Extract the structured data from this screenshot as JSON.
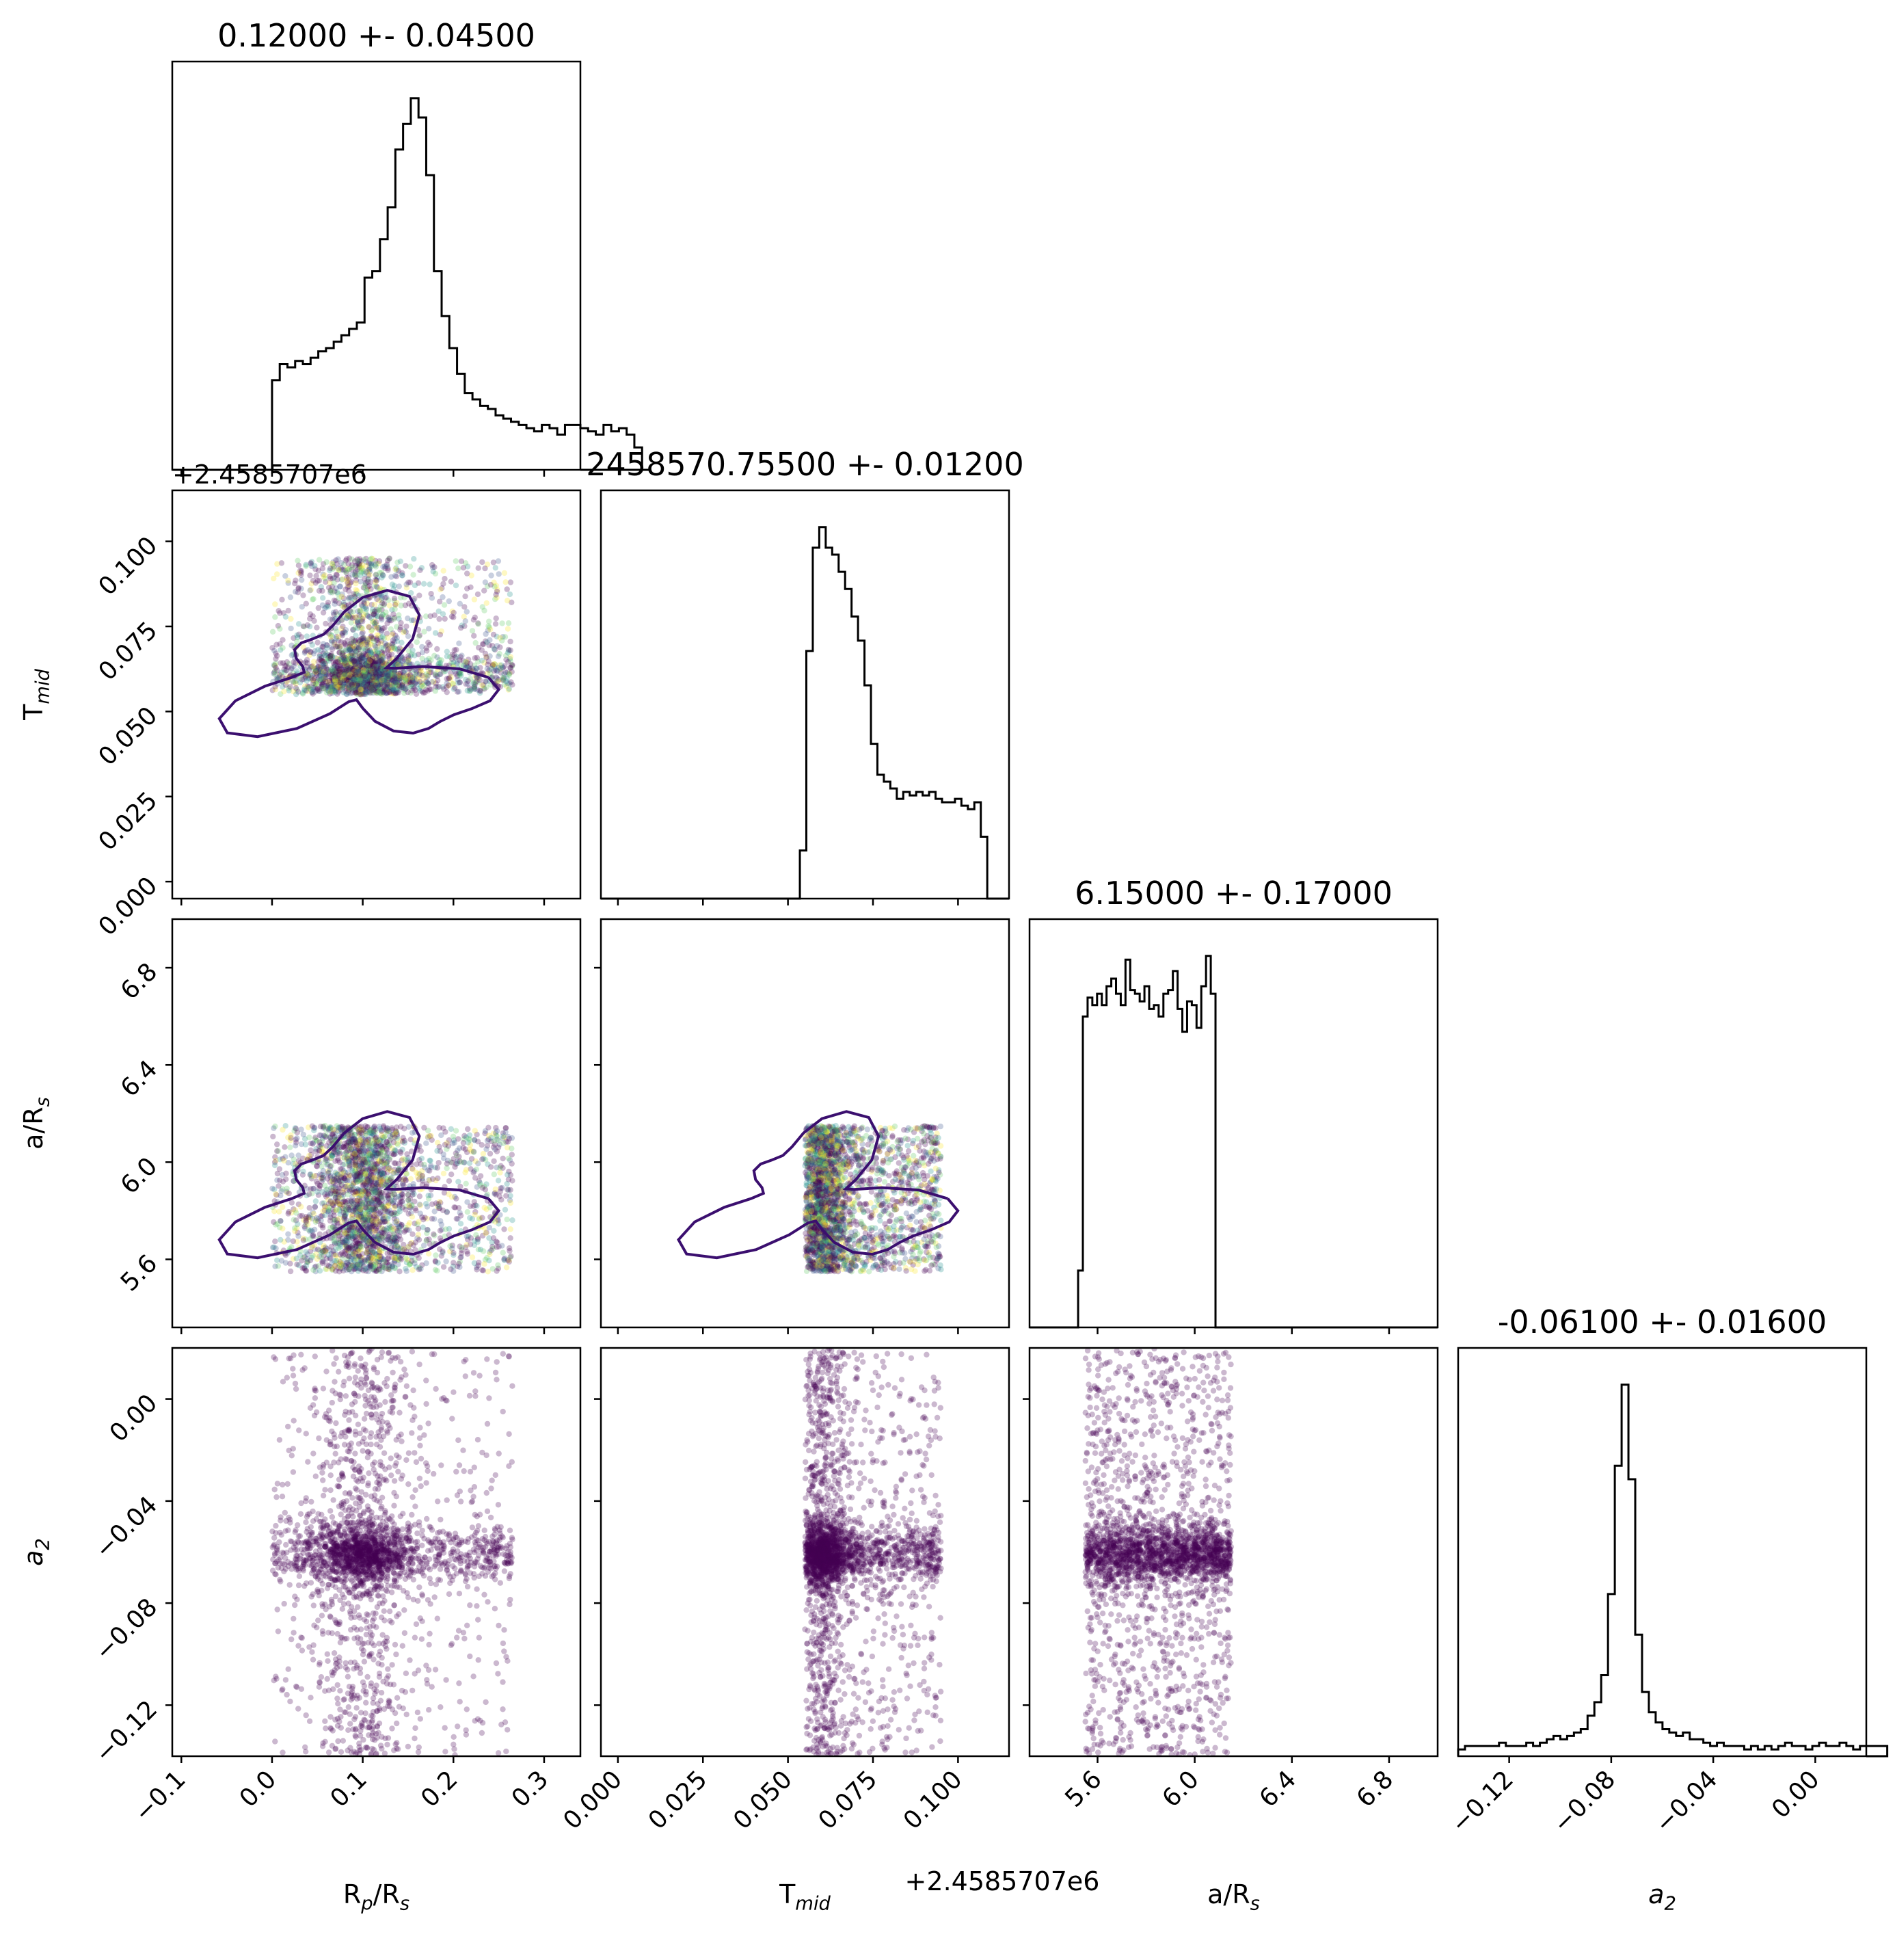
{
  "chart_data": {
    "type": "corner",
    "figure": "corner plot of posterior samples",
    "corner_offset_label": "+2.4585707e6",
    "parameters": [
      {
        "key": "rp",
        "label": "R",
        "label_sub": "p",
        "label_tail": "/R",
        "label_tail_sub": "s",
        "range": [
          -0.11,
          0.34
        ],
        "ticks": [
          -0.1,
          0.0,
          0.1,
          0.2,
          0.3
        ],
        "tick_labels": [
          "−0.1",
          "0.0",
          "0.1",
          "0.2",
          "0.3"
        ],
        "title": "0.12000 +- 0.04500"
      },
      {
        "key": "tmid",
        "label": "T",
        "label_sub": "mid",
        "label_tail": "",
        "label_tail_sub": "",
        "offset_label": "+2.4585707e6",
        "range": [
          -0.005,
          0.115
        ],
        "ticks": [
          0.0,
          0.025,
          0.05,
          0.075,
          0.1
        ],
        "tick_labels": [
          "0.000",
          "0.025",
          "0.050",
          "0.075",
          "0.100"
        ],
        "title": "2458570.75500 +- 0.01200"
      },
      {
        "key": "ars",
        "label": "a/R",
        "label_sub": "s",
        "label_tail": "",
        "label_tail_sub": "",
        "range": [
          5.32,
          7.0
        ],
        "ticks": [
          5.6,
          6.0,
          6.4,
          6.8
        ],
        "tick_labels": [
          "5.6",
          "6.0",
          "6.4",
          "6.8"
        ],
        "title": "6.15000 +- 0.17000"
      },
      {
        "key": "a2",
        "label": "a",
        "label_sub": "2",
        "label_tail": "",
        "label_tail_sub": "",
        "italic": true,
        "range": [
          -0.14,
          0.02
        ],
        "ticks": [
          -0.12,
          -0.08,
          -0.04,
          0.0
        ],
        "tick_labels": [
          "−0.12",
          "−0.08",
          "−0.04",
          "0.00"
        ],
        "title": "-0.06100 +- 0.01600"
      }
    ],
    "histograms": {
      "rp": {
        "bin_edges_start": 0.0,
        "bin_width": 0.0085,
        "counts": [
          28,
          33,
          32,
          34,
          33,
          35,
          37,
          38,
          40,
          42,
          44,
          46,
          60,
          62,
          72,
          82,
          100,
          108,
          116,
          110,
          92,
          62,
          48,
          38,
          30,
          24,
          22,
          20,
          19,
          17,
          16,
          15,
          14,
          13,
          12,
          14,
          13,
          11,
          14,
          14,
          13,
          12,
          11,
          14,
          12,
          13,
          11,
          7,
          0
        ]
      },
      "tmid": {
        "bin_edges_start": 0.0535,
        "bin_width": 0.0019,
        "counts": [
          14,
          72,
          102,
          108,
          102,
          100,
          95,
          90,
          82,
          75,
          62,
          45,
          36,
          34,
          32,
          29,
          31,
          30,
          31,
          30,
          31,
          29,
          28,
          28,
          29,
          27,
          26,
          28,
          18,
          0
        ]
      },
      "ars": {
        "bin_edges_start": 5.52,
        "bin_width": 0.0195,
        "counts": [
          15,
          82,
          87,
          85,
          88,
          85,
          90,
          92,
          88,
          85,
          97,
          89,
          88,
          86,
          90,
          84,
          85,
          82,
          88,
          89,
          94,
          84,
          78,
          86,
          85,
          79,
          90,
          98,
          88,
          0
        ],
        "notes": "uniform-ish between ~5.55 and 6.15"
      },
      "a2": {
        "bin_edges_start": -0.14,
        "bin_width": 0.00267,
        "counts": [
          2,
          3,
          3,
          3,
          3,
          3,
          4,
          3,
          3,
          3,
          4,
          3,
          4,
          5,
          6,
          5,
          6,
          7,
          8,
          12,
          16,
          24,
          48,
          86,
          110,
          82,
          36,
          19,
          13,
          10,
          8,
          7,
          6,
          7,
          5,
          5,
          4,
          3,
          4,
          3,
          3,
          3,
          2,
          3,
          2,
          3,
          2,
          3,
          4,
          3,
          3,
          2,
          3,
          4,
          3,
          3,
          4,
          3,
          2,
          3,
          3,
          3,
          3
        ]
      }
    },
    "samples_description": {
      "rp": {
        "core_center": 0.1,
        "core_sigma": 0.025,
        "tail_min": 0.0,
        "tail_max": 0.265
      },
      "tmid": {
        "core_center": 0.06,
        "core_sigma": 0.004,
        "tail_min": 0.055,
        "tail_max": 0.095
      },
      "ars": {
        "min": 5.55,
        "max": 6.15
      },
      "a2": {
        "core_center": -0.061,
        "core_sigma": 0.006,
        "tail_min": -0.14,
        "tail_max": 0.02
      }
    },
    "point_color": "#440154",
    "contour_color": "#3b0f6f",
    "grid": false,
    "legend": "none"
  }
}
